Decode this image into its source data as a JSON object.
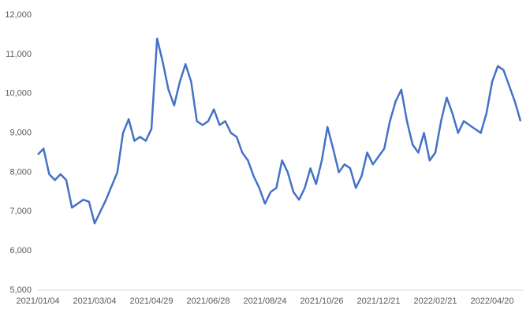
{
  "chart_data": {
    "type": "line",
    "categories": [
      "2021/01/04",
      null,
      null,
      null,
      null,
      null,
      null,
      null,
      null,
      null,
      "2021/03/04",
      null,
      null,
      null,
      null,
      null,
      null,
      null,
      null,
      null,
      "2021/04/29",
      null,
      null,
      null,
      null,
      null,
      null,
      null,
      null,
      null,
      "2021/06/28",
      null,
      null,
      null,
      null,
      null,
      null,
      null,
      null,
      null,
      "2021/08/24",
      null,
      null,
      null,
      null,
      null,
      null,
      null,
      null,
      null,
      "2021/10/26",
      null,
      null,
      null,
      null,
      null,
      null,
      null,
      null,
      null,
      "2021/12/21",
      null,
      null,
      null,
      null,
      null,
      null,
      null,
      null,
      null,
      "2022/02/21",
      null,
      null,
      null,
      null,
      null,
      null,
      null,
      null,
      null,
      "2022/04/20",
      null,
      null,
      null,
      null,
      null
    ],
    "series": [
      {
        "color": "#4472c4",
        "values": [
          8450,
          8600,
          7950,
          7800,
          7950,
          7800,
          7100,
          7200,
          7300,
          7250,
          6700,
          7000,
          7300,
          7650,
          8000,
          9000,
          9350,
          8800,
          8900,
          8800,
          9100,
          11400,
          10800,
          10100,
          9700,
          10300,
          10750,
          10300,
          9300,
          9200,
          9300,
          9600,
          9200,
          9300,
          9000,
          8900,
          8500,
          8300,
          7900,
          7600,
          7200,
          7500,
          7600,
          8300,
          8000,
          7500,
          7300,
          7600,
          8100,
          7700,
          8300,
          9150,
          8600,
          8000,
          8200,
          8100,
          7600,
          7900,
          8500,
          8200,
          8400,
          8600,
          9300,
          9800,
          10100,
          9300,
          8700,
          8500,
          9000,
          8300,
          8500,
          9300,
          9900,
          9500,
          9000,
          9300,
          9200,
          9100,
          9000,
          9500,
          10300,
          10700,
          10600,
          10200,
          9800,
          9300
        ]
      }
    ],
    "ylim": [
      5000,
      12000
    ],
    "yticks": [
      {
        "value": 5000,
        "label": "5,000"
      },
      {
        "value": 6000,
        "label": "6,000"
      },
      {
        "value": 7000,
        "label": "7,000"
      },
      {
        "value": 8000,
        "label": "8,000"
      },
      {
        "value": 9000,
        "label": "9,000"
      },
      {
        "value": 10000,
        "label": "10,000"
      },
      {
        "value": 11000,
        "label": "11,000"
      },
      {
        "value": 12000,
        "label": "12,000"
      }
    ],
    "grid": false
  }
}
